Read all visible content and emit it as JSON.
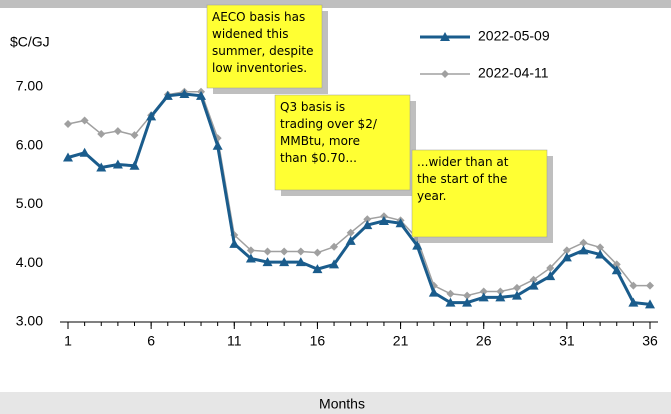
{
  "chart_data": {
    "type": "line",
    "y_label": "$C/GJ",
    "x_label": "Months",
    "x": [
      1,
      2,
      3,
      4,
      5,
      6,
      7,
      8,
      9,
      10,
      11,
      12,
      13,
      14,
      15,
      16,
      17,
      18,
      19,
      20,
      21,
      22,
      23,
      24,
      25,
      26,
      27,
      28,
      29,
      30,
      31,
      32,
      33,
      34,
      35,
      36
    ],
    "series": [
      {
        "name": "2022-05-09",
        "color": "#1a5c8c",
        "marker": "triangle",
        "values": [
          5.8,
          5.88,
          5.63,
          5.68,
          5.66,
          6.5,
          6.85,
          6.88,
          6.85,
          6.0,
          4.33,
          4.08,
          4.02,
          4.02,
          4.02,
          3.9,
          3.98,
          4.38,
          4.65,
          4.72,
          4.68,
          4.3,
          3.5,
          3.33,
          3.33,
          3.42,
          3.42,
          3.45,
          3.62,
          3.78,
          4.1,
          4.22,
          4.15,
          3.88,
          3.33,
          3.3
        ]
      },
      {
        "name": "2022-04-11",
        "color": "#a0a0a0",
        "marker": "diamond",
        "values": [
          6.37,
          6.43,
          6.2,
          6.25,
          6.18,
          6.52,
          6.87,
          6.92,
          6.92,
          6.13,
          4.48,
          4.22,
          4.2,
          4.2,
          4.2,
          4.18,
          4.28,
          4.52,
          4.75,
          4.8,
          4.73,
          4.42,
          3.62,
          3.48,
          3.45,
          3.52,
          3.52,
          3.58,
          3.72,
          3.92,
          4.22,
          4.35,
          4.27,
          3.98,
          3.62,
          3.62
        ]
      }
    ],
    "xlim": [
      1,
      36
    ],
    "xticks": [
      1,
      6,
      11,
      16,
      21,
      26,
      31,
      36
    ],
    "ylim": [
      3,
      7
    ],
    "yticks": [
      {
        "value": 3,
        "label": "3.00"
      },
      {
        "value": 4,
        "label": "4.00"
      },
      {
        "value": 5,
        "label": "5.00"
      },
      {
        "value": 6,
        "label": "6.00"
      },
      {
        "value": 7,
        "label": "7.00"
      }
    ],
    "annotations": [
      {
        "lines": [
          "AECO basis has",
          "widened this",
          "summer, despite",
          "low inventories."
        ]
      },
      {
        "lines": [
          "Q3 basis is",
          "trading over $2/",
          "MMBtu, more",
          "than $0.70..."
        ]
      },
      {
        "lines": [
          "...wider than at",
          "the start of the",
          "year."
        ]
      }
    ]
  }
}
